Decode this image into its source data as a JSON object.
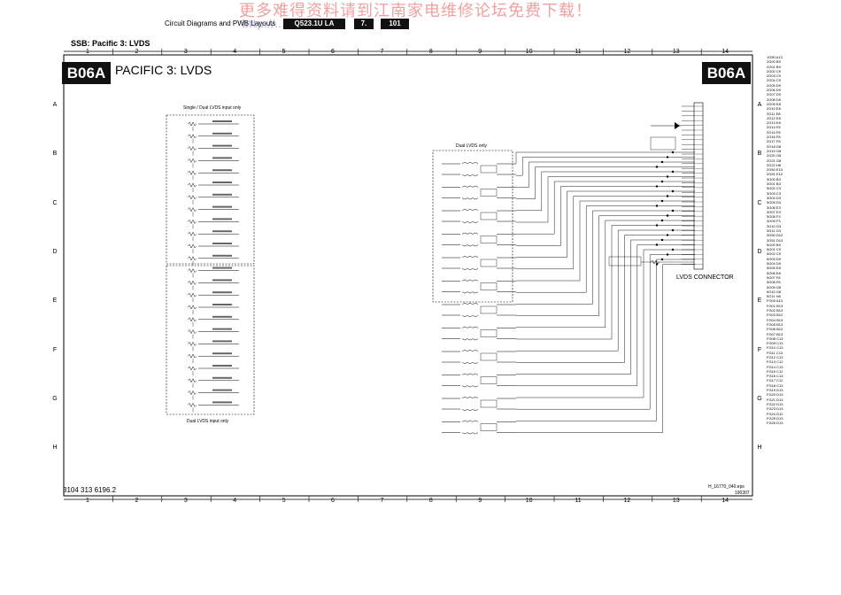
{
  "header": {
    "watermark": "更多难得资料请到江南家电维修论坛免费下载！",
    "watermark_url": "http://...com",
    "label": "Circuit Diagrams and PWB Layouts",
    "model": "Q523.1U LA",
    "chapter": "7.",
    "page": "101"
  },
  "section_title": "SSB: Pacific 3: LVDS",
  "badge": "B06A",
  "page_title": "PACIFIC 3: LVDS",
  "columns": [
    "1",
    "2",
    "3",
    "4",
    "5",
    "6",
    "7",
    "8",
    "9",
    "10",
    "11",
    "12",
    "13",
    "14"
  ],
  "rows": [
    "A",
    "B",
    "C",
    "D",
    "E",
    "F",
    "G",
    "H"
  ],
  "box_labels": {
    "single_dual": "Single / Dual LVDS input only",
    "dual_only": "Dual LVDS only",
    "dual_input": "Dual LVDS input only"
  },
  "connector_label": "LVDS CONNECTOR",
  "doc_number": "3104 313 6196.2",
  "file_ref": "H_16770_040.eps",
  "file_date": "190307",
  "ref_list": [
    "1G50 A13",
    "2G00 B9",
    "2G01 B9",
    "2G02 C9",
    "2G03 C9",
    "2G04 C9",
    "2G05 D9",
    "2G06 D9",
    "2G07 D9",
    "2G08 D9",
    "2G09 E8",
    "2G10 E8",
    "2G11 E8",
    "2G12 E8",
    "2G13 E8",
    "2G14 F8",
    "2G15 F8",
    "2G16 F8",
    "2G17 F8",
    "2G18 G8",
    "2G19 G8",
    "2G20 G8",
    "2G21 G8",
    "2G22 H8",
    "2G50 E13",
    "2G51 E12",
    "3G00 B3",
    "3G01 B3",
    "3G02 C3",
    "3G03 C3",
    "3G04 D3",
    "3G05 D3",
    "3G06 E3",
    "3G07 E3",
    "3G08 F3",
    "3G09 F3",
    "3G10 G3",
    "3G11 G3",
    "3G50 D12",
    "3G51 D13",
    "5G00 B9",
    "5G01 C9",
    "5G02 C9",
    "5G03 D9",
    "5G04 D9",
    "5G05 E8",
    "5G06 E8",
    "5G07 F8",
    "5G08 F8",
    "5G09 G8",
    "5G10 G8",
    "5G11 H8",
    "FG00 A13",
    "FG01 B13",
    "FG02 B13",
    "FG03 B12",
    "FG04 B13",
    "FG05 B13",
    "FG06 B13",
    "FG07 B13",
    "FG08 C13",
    "FG09 C13",
    "FG10 C13",
    "FG11 C13",
    "FG12 C13",
    "FG13 C12",
    "FG14 C13",
    "FG15 C12",
    "FG16 C13",
    "FG17 C12",
    "FG18 C13",
    "FG19 D13",
    "FG20 D13",
    "FG21 D13",
    "FG22 D13",
    "FG23 D13",
    "FG24 D12",
    "FG25 D13",
    "FG26 D13"
  ]
}
